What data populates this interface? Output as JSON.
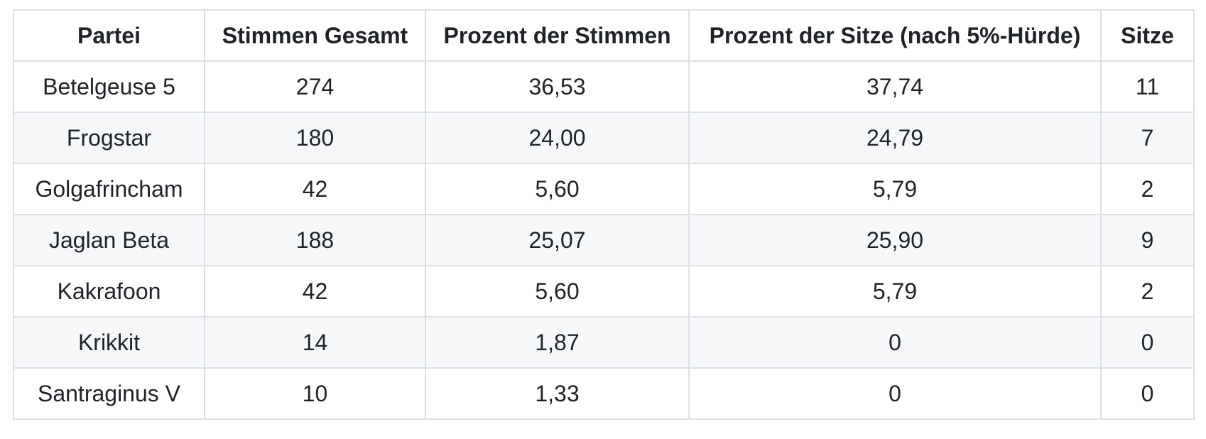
{
  "table": {
    "columns": [
      "Partei",
      "Stimmen Gesamt",
      "Prozent der Stimmen",
      "Prozent der Sitze (nach 5%-Hürde)",
      "Sitze"
    ],
    "rows": [
      [
        "Betelgeuse 5",
        "274",
        "36,53",
        "37,74",
        "11"
      ],
      [
        "Frogstar",
        "180",
        "24,00",
        "24,79",
        "7"
      ],
      [
        "Golgafrincham",
        "42",
        "5,60",
        "5,79",
        "2"
      ],
      [
        "Jaglan Beta",
        "188",
        "25,07",
        "25,90",
        "9"
      ],
      [
        "Kakrafoon",
        "42",
        "5,60",
        "5,79",
        "2"
      ],
      [
        "Krikkit",
        "14",
        "1,87",
        "0",
        "0"
      ],
      [
        "Santraginus V",
        "10",
        "1,33",
        "0",
        "0"
      ]
    ]
  },
  "colors": {
    "text": "#1f2328",
    "border": "#dce0e5",
    "stripe": "#f6f8fa",
    "background": "#ffffff"
  }
}
